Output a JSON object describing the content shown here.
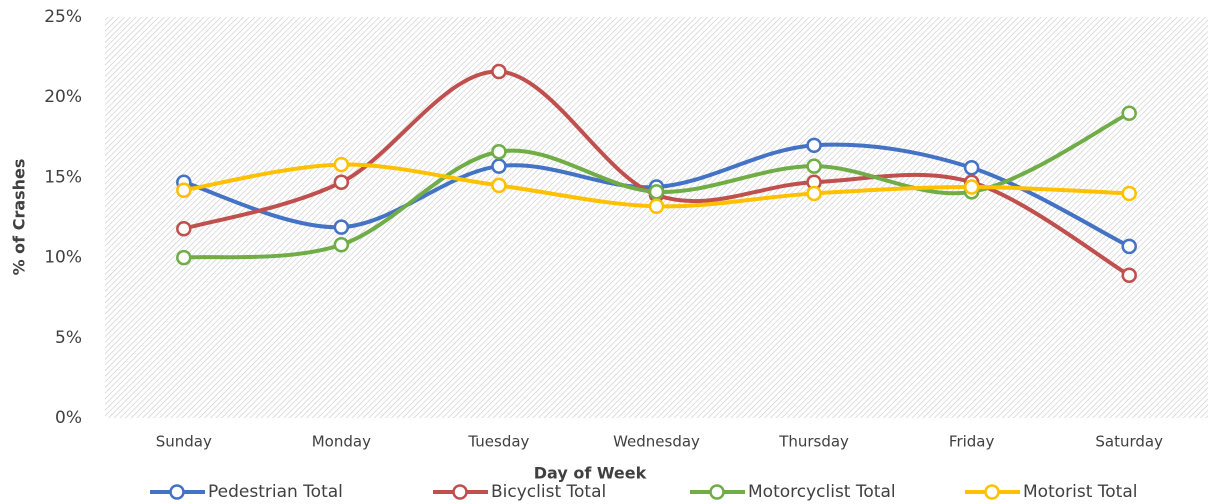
{
  "chart_data": {
    "type": "line",
    "x_label": "Day of Week",
    "y_label": "% of Crashes",
    "categories": [
      "Sunday",
      "Monday",
      "Tuesday",
      "Wednesday",
      "Thursday",
      "Friday",
      "Saturday"
    ],
    "series": [
      {
        "name": "Pedestrian Total",
        "color": "#4472c4",
        "values": [
          14.7,
          11.9,
          15.7,
          14.4,
          17.0,
          15.6,
          10.7
        ]
      },
      {
        "name": "Bicyclist Total",
        "color": "#c0504d",
        "values": [
          11.8,
          14.7,
          21.6,
          13.9,
          14.7,
          14.7,
          8.9
        ]
      },
      {
        "name": "Motorcyclist Total",
        "color": "#70ad47",
        "values": [
          10.0,
          10.8,
          16.6,
          14.1,
          15.7,
          14.1,
          19.0
        ]
      },
      {
        "name": "Motorist Total",
        "color": "#ffc000",
        "values": [
          14.2,
          15.8,
          14.5,
          13.2,
          14.0,
          14.4,
          14.0
        ]
      }
    ],
    "ylim": [
      0,
      25
    ],
    "yticks": [
      {
        "value": 0,
        "label": "0%"
      },
      {
        "value": 5,
        "label": "5%"
      },
      {
        "value": 10,
        "label": "10%"
      },
      {
        "value": 15,
        "label": "15%"
      },
      {
        "value": 20,
        "label": "20%"
      },
      {
        "value": 25,
        "label": "25%"
      }
    ],
    "legend": "bottom"
  }
}
